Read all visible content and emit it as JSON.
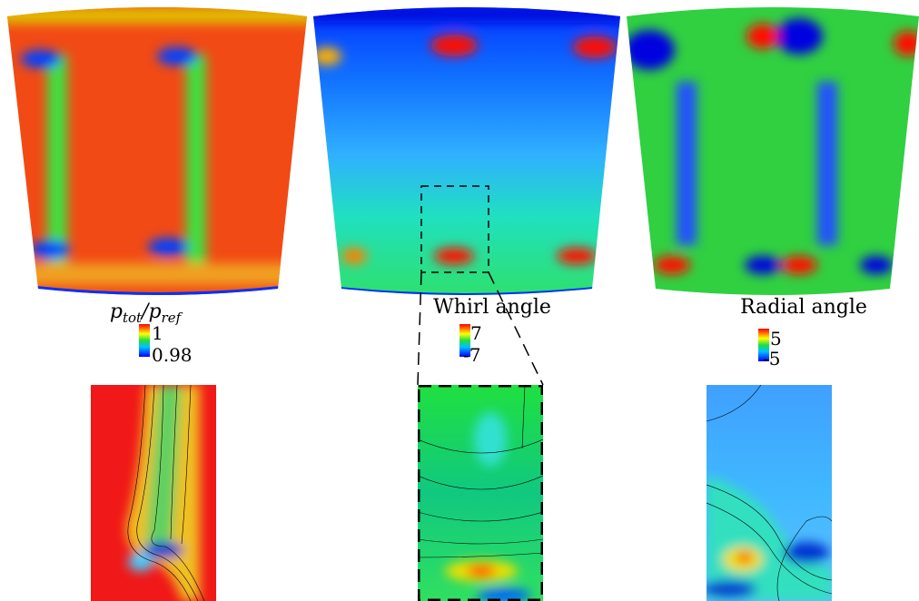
{
  "panels": [
    {
      "label_parts": [
        "p",
        "tot",
        "/p",
        "ref"
      ],
      "colorbar": {
        "max": 1,
        "min": 0.98
      }
    },
    {
      "label": "Whirl angle",
      "colorbar": {
        "max": 7,
        "min": -7
      }
    },
    {
      "label": "Radial angle",
      "colorbar": {
        "max": 5,
        "min": -5
      }
    }
  ]
}
